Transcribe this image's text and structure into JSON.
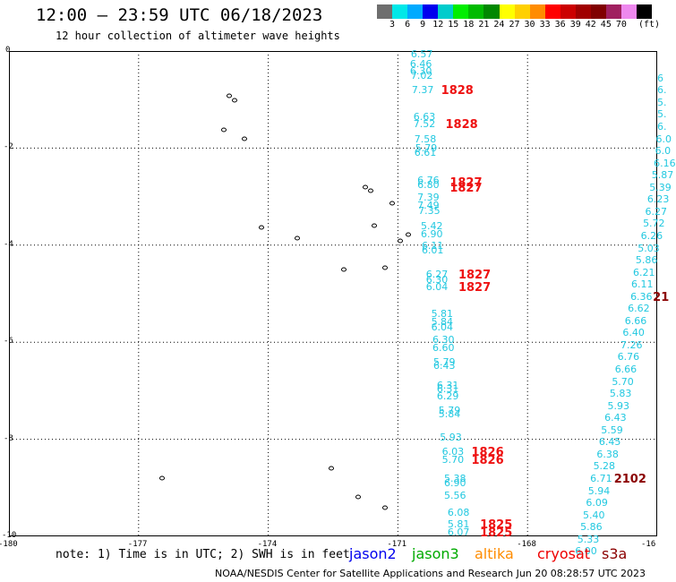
{
  "header": {
    "title": "12:00 – 23:59 UTC 06/18/2023",
    "subtitle": "12 hour collection of altimeter wave heights"
  },
  "colorbar": {
    "colors": [
      "#6e6e6e",
      "#00e8e8",
      "#00aaff",
      "#0000ee",
      "#00cccc",
      "#00ee00",
      "#00bb00",
      "#008800",
      "#ffff00",
      "#ffd000",
      "#ff8c00",
      "#ff0000",
      "#cc0000",
      "#a00000",
      "#800000",
      "#a02060",
      "#ee88ee",
      "#000000"
    ],
    "labels": [
      "3",
      "6",
      "9",
      "12",
      "15",
      "18",
      "21",
      "24",
      "27",
      "30",
      "33",
      "36",
      "39",
      "42",
      "45",
      "70"
    ],
    "unit": "(ft)"
  },
  "map": {
    "y_ticks": [
      "0",
      "-2",
      "-4",
      "-6",
      "-8",
      "-10"
    ],
    "x_ticks": [
      "-180",
      "-177",
      "-174",
      "-171",
      "-168",
      "-16"
    ],
    "lon_range": [
      -180,
      -165
    ],
    "lat_range": [
      -10,
      0
    ]
  },
  "track_jason3": [
    {
      "value": "6.57",
      "lon": -170.7,
      "lat": -0.05
    },
    {
      "value": "6.46",
      "lon": -170.72,
      "lat": -0.25
    },
    {
      "value": "6.30",
      "lon": -170.72,
      "lat": -0.4
    },
    {
      "value": "7.02",
      "lon": -170.7,
      "lat": -0.5
    },
    {
      "value": "7.37",
      "lon": -170.68,
      "lat": -0.8
    },
    {
      "value": "6.63",
      "lon": -170.64,
      "lat": -1.35
    },
    {
      "value": "7.52",
      "lon": -170.64,
      "lat": -1.5
    },
    {
      "value": "7.58",
      "lon": -170.62,
      "lat": -1.8
    },
    {
      "value": "5.79",
      "lon": -170.6,
      "lat": -2.0
    },
    {
      "value": "6.61",
      "lon": -170.62,
      "lat": -2.08
    },
    {
      "value": "6.76",
      "lon": -170.55,
      "lat": -2.65
    },
    {
      "value": "6.80",
      "lon": -170.55,
      "lat": -2.75
    },
    {
      "value": "7.39",
      "lon": -170.55,
      "lat": -3.0
    },
    {
      "value": "7.49",
      "lon": -170.55,
      "lat": -3.18
    },
    {
      "value": "7.35",
      "lon": -170.53,
      "lat": -3.28
    },
    {
      "value": "5.42",
      "lon": -170.47,
      "lat": -3.6
    },
    {
      "value": "6.90",
      "lon": -170.47,
      "lat": -3.77
    },
    {
      "value": "6.11",
      "lon": -170.45,
      "lat": -4.0
    },
    {
      "value": "6.01",
      "lon": -170.45,
      "lat": -4.1
    },
    {
      "value": "6.27",
      "lon": -170.35,
      "lat": -4.6
    },
    {
      "value": "6.30",
      "lon": -170.35,
      "lat": -4.7
    },
    {
      "value": "6.04",
      "lon": -170.35,
      "lat": -4.85
    },
    {
      "value": "5.81",
      "lon": -170.23,
      "lat": -5.4
    },
    {
      "value": "5.84",
      "lon": -170.23,
      "lat": -5.58
    },
    {
      "value": "6.04",
      "lon": -170.23,
      "lat": -5.68
    },
    {
      "value": "6.30",
      "lon": -170.2,
      "lat": -5.95
    },
    {
      "value": "6.60",
      "lon": -170.2,
      "lat": -6.1
    },
    {
      "value": "5.79",
      "lon": -170.18,
      "lat": -6.4
    },
    {
      "value": "6.43",
      "lon": -170.18,
      "lat": -6.48
    },
    {
      "value": "6.31",
      "lon": -170.1,
      "lat": -6.88
    },
    {
      "value": "6.31",
      "lon": -170.1,
      "lat": -6.96
    },
    {
      "value": "6.29",
      "lon": -170.1,
      "lat": -7.1
    },
    {
      "value": "5.79",
      "lon": -170.06,
      "lat": -7.4
    },
    {
      "value": "5.84",
      "lon": -170.06,
      "lat": -7.48
    },
    {
      "value": "5.93",
      "lon": -170.03,
      "lat": -7.95
    },
    {
      "value": "6.03",
      "lon": -169.98,
      "lat": -8.25
    },
    {
      "value": "5.70",
      "lon": -169.98,
      "lat": -8.42
    },
    {
      "value": "5.38",
      "lon": -169.93,
      "lat": -8.8
    },
    {
      "value": "6.90",
      "lon": -169.93,
      "lat": -8.9
    },
    {
      "value": "5.56",
      "lon": -169.93,
      "lat": -9.15
    },
    {
      "value": "6.08",
      "lon": -169.85,
      "lat": -9.5
    },
    {
      "value": "5.81",
      "lon": -169.85,
      "lat": -9.75
    },
    {
      "value": "6.07",
      "lon": -169.85,
      "lat": -9.9
    }
  ],
  "track_jason3_east": [
    {
      "value": "6",
      "lon": -165.0,
      "lat": -0.55
    },
    {
      "value": "6.",
      "lon": -165.0,
      "lat": -0.8
    },
    {
      "value": "5.",
      "lon": -165.0,
      "lat": -1.05
    },
    {
      "value": "5.",
      "lon": -165.0,
      "lat": -1.3
    },
    {
      "value": "6.",
      "lon": -165.0,
      "lat": -1.55
    },
    {
      "value": "6.0",
      "lon": -165.03,
      "lat": -1.8
    },
    {
      "value": "6.0",
      "lon": -165.05,
      "lat": -2.05
    },
    {
      "value": "6.16",
      "lon": -165.08,
      "lat": -2.3
    },
    {
      "value": "5.87",
      "lon": -165.13,
      "lat": -2.55
    },
    {
      "value": "5.39",
      "lon": -165.18,
      "lat": -2.8
    },
    {
      "value": "6.23",
      "lon": -165.23,
      "lat": -3.05
    },
    {
      "value": "6.27",
      "lon": -165.28,
      "lat": -3.3
    },
    {
      "value": "5.72",
      "lon": -165.33,
      "lat": -3.55
    },
    {
      "value": "6.26",
      "lon": -165.38,
      "lat": -3.8
    },
    {
      "value": "5.03",
      "lon": -165.45,
      "lat": -4.05
    },
    {
      "value": "5.86",
      "lon": -165.5,
      "lat": -4.3
    },
    {
      "value": "6.21",
      "lon": -165.56,
      "lat": -4.55
    },
    {
      "value": "6.11",
      "lon": -165.6,
      "lat": -4.8
    },
    {
      "value": "6.36",
      "lon": -165.62,
      "lat": -5.05
    },
    {
      "value": "6.62",
      "lon": -165.68,
      "lat": -5.3
    },
    {
      "value": "6.66",
      "lon": -165.75,
      "lat": -5.55
    },
    {
      "value": "6.40",
      "lon": -165.8,
      "lat": -5.8
    },
    {
      "value": "7.26",
      "lon": -165.85,
      "lat": -6.05
    },
    {
      "value": "6.76",
      "lon": -165.92,
      "lat": -6.3
    },
    {
      "value": "6.66",
      "lon": -165.98,
      "lat": -6.55
    },
    {
      "value": "5.70",
      "lon": -166.05,
      "lat": -6.8
    },
    {
      "value": "5.83",
      "lon": -166.1,
      "lat": -7.05
    },
    {
      "value": "5.93",
      "lon": -166.15,
      "lat": -7.3
    },
    {
      "value": "6.43",
      "lon": -166.22,
      "lat": -7.55
    },
    {
      "value": "5.59",
      "lon": -166.3,
      "lat": -7.8
    },
    {
      "value": "6.45",
      "lon": -166.35,
      "lat": -8.05
    },
    {
      "value": "6.38",
      "lon": -166.4,
      "lat": -8.3
    },
    {
      "value": "5.28",
      "lon": -166.48,
      "lat": -8.55
    },
    {
      "value": "6.71",
      "lon": -166.55,
      "lat": -8.8
    },
    {
      "value": "5.94",
      "lon": -166.6,
      "lat": -9.05
    },
    {
      "value": "6.09",
      "lon": -166.65,
      "lat": -9.3
    },
    {
      "value": "5.40",
      "lon": -166.72,
      "lat": -9.55
    },
    {
      "value": "5.86",
      "lon": -166.78,
      "lat": -9.8
    },
    {
      "value": "5.33",
      "lon": -166.85,
      "lat": -10.05
    },
    {
      "value": "6.00",
      "lon": -166.9,
      "lat": -10.3
    }
  ],
  "time_labels": [
    {
      "value": "1828",
      "lon": -170.0,
      "lat": -0.8,
      "cls": "tm"
    },
    {
      "value": "1828",
      "lon": -169.9,
      "lat": -1.5,
      "cls": "tm"
    },
    {
      "value": "1827",
      "lon": -169.8,
      "lat": -2.7,
      "cls": "tm"
    },
    {
      "value": "1827",
      "lon": -169.8,
      "lat": -2.8,
      "cls": "tm"
    },
    {
      "value": "1827",
      "lon": -169.6,
      "lat": -4.6,
      "cls": "tm"
    },
    {
      "value": "1827",
      "lon": -169.6,
      "lat": -4.85,
      "cls": "tm"
    },
    {
      "value": "1826",
      "lon": -169.3,
      "lat": -8.25,
      "cls": "tm"
    },
    {
      "value": "1826",
      "lon": -169.3,
      "lat": -8.42,
      "cls": "tm"
    },
    {
      "value": "1825",
      "lon": -169.1,
      "lat": -9.75,
      "cls": "tm"
    },
    {
      "value": "1825",
      "lon": -169.1,
      "lat": -9.9,
      "cls": "tm"
    },
    {
      "value": "2102",
      "lon": -166.0,
      "lat": -8.8,
      "cls": "tm tm2"
    },
    {
      "value": "21",
      "lon": -165.1,
      "lat": -5.05,
      "cls": "tm tm2"
    }
  ],
  "footer": {
    "note": "note: 1) Time is in UTC; 2) SWH is in feet",
    "satellites": [
      {
        "name": "jason2",
        "color": "#0000ee"
      },
      {
        "name": "jason3",
        "color": "#00aa00"
      },
      {
        "name": "altika",
        "color": "#ff8c00"
      },
      {
        "name": "cryosat",
        "color": "#ee0000"
      },
      {
        "name": "s3a",
        "color": "#8b0000"
      }
    ],
    "credit": "NOAA/NESDIS Center for Satellite Applications and Research    Jun 20 08:28:57 UTC 2023"
  }
}
